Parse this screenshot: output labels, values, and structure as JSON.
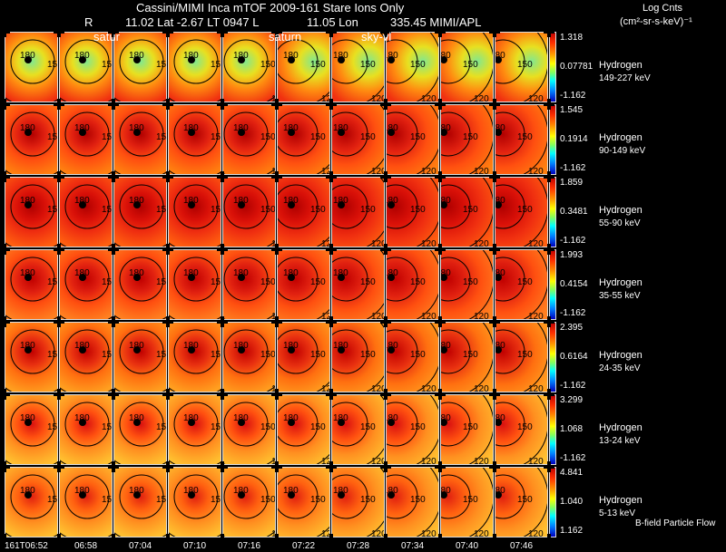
{
  "header": {
    "title": "Cassini/MIMI Inca mTOF  2009-161    Stare    Ions Only",
    "r_label": "R",
    "lat_lt": "11.02 Lat -2.67 LT 0947 L",
    "lon": "11.05 Lon",
    "lon_val_src": "335.45  MIMI/APL",
    "units_title": "Log Cnts",
    "units": "(cm²-sr-s-keV)⁻¹"
  },
  "overlay_labels": [
    "satur",
    "saturn",
    "sky-vl"
  ],
  "footer_label": "B-field Particle Flow",
  "chart_data": {
    "type": "heatmap",
    "title": "Cassini/MIMI Inca mTOF 2009-161 Stare Ions Only",
    "times": [
      "161T06:52",
      "06:58",
      "07:04",
      "07:10",
      "07:16",
      "07:22",
      "07:28",
      "07:34",
      "07:40",
      "07:46"
    ],
    "contour_labels": [
      "180",
      "150",
      "120"
    ],
    "rows": [
      {
        "species": "Hydrogen",
        "energy": "149-227 keV",
        "cbar": [
          "1.318",
          "0.07781",
          "-1.162"
        ]
      },
      {
        "species": "Hydrogen",
        "energy": "90-149 keV",
        "cbar": [
          "1.545",
          "0.1914",
          "-1.162"
        ]
      },
      {
        "species": "Hydrogen",
        "energy": "55-90 keV",
        "cbar": [
          "1.859",
          "0.3481",
          "-1.162"
        ]
      },
      {
        "species": "Hydrogen",
        "energy": "35-55 keV",
        "cbar": [
          "1.993",
          "0.4154",
          "-1.162"
        ]
      },
      {
        "species": "Hydrogen",
        "energy": "24-35 keV",
        "cbar": [
          "2.395",
          "0.6164",
          "-1.162"
        ]
      },
      {
        "species": "Hydrogen",
        "energy": "13-24 keV",
        "cbar": [
          "3.299",
          "1.068",
          "-1.162"
        ]
      },
      {
        "species": "Hydrogen",
        "energy": "5-13 keV",
        "cbar": [
          "4.841",
          "1.040",
          "1.162"
        ]
      }
    ]
  }
}
